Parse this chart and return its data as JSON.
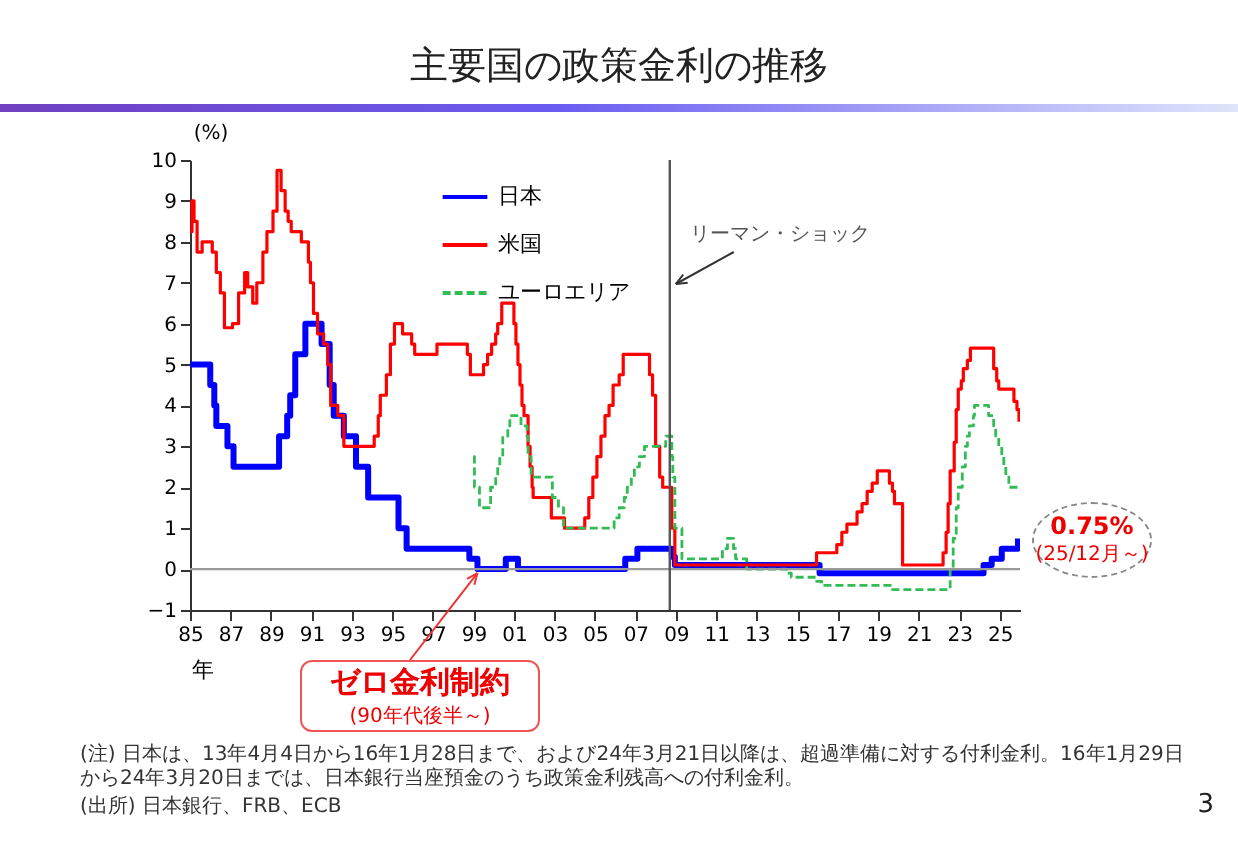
{
  "chart_data": {
    "type": "step",
    "title": "主要国の政策金利の推移",
    "xlabel": "年",
    "ylabel": "(%)",
    "xlim": [
      1985,
      2026
    ],
    "ylim": [
      -1,
      10
    ],
    "xticks": [
      {
        "value": 1985,
        "label": "85"
      },
      {
        "value": 1987,
        "label": "87"
      },
      {
        "value": 1989,
        "label": "89"
      },
      {
        "value": 1991,
        "label": "91"
      },
      {
        "value": 1993,
        "label": "93"
      },
      {
        "value": 1995,
        "label": "95"
      },
      {
        "value": 1997,
        "label": "97"
      },
      {
        "value": 1999,
        "label": "99"
      },
      {
        "value": 2001,
        "label": "01"
      },
      {
        "value": 2003,
        "label": "03"
      },
      {
        "value": 2005,
        "label": "05"
      },
      {
        "value": 2007,
        "label": "07"
      },
      {
        "value": 2009,
        "label": "09"
      },
      {
        "value": 2011,
        "label": "11"
      },
      {
        "value": 2013,
        "label": "13"
      },
      {
        "value": 2015,
        "label": "15"
      },
      {
        "value": 2017,
        "label": "17"
      },
      {
        "value": 2019,
        "label": "19"
      },
      {
        "value": 2021,
        "label": "21"
      },
      {
        "value": 2023,
        "label": "23"
      },
      {
        "value": 2025,
        "label": "25"
      }
    ],
    "yticks": [
      -1,
      0,
      1,
      2,
      3,
      4,
      5,
      6,
      7,
      8,
      9,
      10
    ],
    "legend": "top",
    "grid": false,
    "series": [
      {
        "name": "日本",
        "color": "#0000ff",
        "line_style": "solid",
        "x": [
          1985,
          1986,
          1986.2,
          1986.3,
          1986.85,
          1987.15,
          1989.4,
          1989.8,
          1989.95,
          1990.2,
          1990.7,
          1991.5,
          1991.9,
          1992.1,
          1992.6,
          1993.2,
          1993.8,
          1995.3,
          1995.7,
          1998.8,
          1999.2,
          2000.6,
          2001.2,
          2006.5,
          2007.1,
          2008.8,
          2008.95,
          2016.1,
          2024.2,
          2024.6,
          2025.1,
          2025.9
        ],
        "values": [
          5,
          4.5,
          4,
          3.5,
          3,
          2.5,
          3.25,
          3.75,
          4.25,
          5.25,
          6,
          5.5,
          4.5,
          3.75,
          3.25,
          2.5,
          1.75,
          1,
          0.5,
          0.25,
          0,
          0.25,
          0,
          0.25,
          0.5,
          0.3,
          0.1,
          -0.1,
          0.1,
          0.25,
          0.5,
          0.75
        ]
      },
      {
        "name": "米国",
        "color": "#ff0000",
        "line_style": "solid",
        "x": [
          1985,
          1985.1,
          1985.2,
          1985.35,
          1985.6,
          1986.1,
          1986.3,
          1986.5,
          1986.7,
          1987.1,
          1987.4,
          1987.7,
          1987.85,
          1988.1,
          1988.3,
          1988.6,
          1988.8,
          1989.1,
          1989.3,
          1989.5,
          1989.7,
          1989.85,
          1990,
          1990.5,
          1990.85,
          1990.95,
          1991.1,
          1991.3,
          1991.6,
          1991.8,
          1991.95,
          1992.3,
          1992.6,
          1994.1,
          1994.3,
          1994.4,
          1994.7,
          1994.9,
          1995.1,
          1995.5,
          1995.95,
          1996.1,
          1997.2,
          1998.7,
          1998.85,
          1999.5,
          1999.7,
          1999.9,
          2000.1,
          2000.2,
          2000.4,
          2001,
          2001.1,
          2001.2,
          2001.3,
          2001.4,
          2001.5,
          2001.7,
          2001.8,
          2001.9,
          2001.95,
          2002.85,
          2003.5,
          2004.5,
          2004.7,
          2004.9,
          2005.1,
          2005.3,
          2005.5,
          2005.7,
          2005.9,
          2006.2,
          2006.4,
          2007.7,
          2007.85,
          2008,
          2008.2,
          2008.35,
          2008.8,
          2008.95,
          2015.95,
          2016.95,
          2017.2,
          2017.45,
          2017.95,
          2018.2,
          2018.45,
          2018.7,
          2018.95,
          2019.55,
          2019.7,
          2019.8,
          2020.2,
          2022.2,
          2022.35,
          2022.45,
          2022.55,
          2022.75,
          2022.85,
          2022.95,
          2023.1,
          2023.2,
          2023.4,
          2023.55,
          2024.7,
          2024.85,
          2024.95,
          2025.7,
          2025.85,
          2025.95
        ],
        "values": [
          8.25,
          9,
          8.5,
          7.75,
          8,
          7.75,
          7.25,
          6.75,
          5.9,
          6,
          6.75,
          7.25,
          6.9,
          6.5,
          7,
          7.75,
          8.25,
          8.75,
          9.75,
          9.25,
          8.75,
          8.5,
          8.25,
          8,
          7.5,
          7,
          6.25,
          5.75,
          5.5,
          5,
          4,
          3.75,
          3,
          3.25,
          3.75,
          4.25,
          4.75,
          5.5,
          6,
          5.75,
          5.5,
          5.25,
          5.5,
          5.25,
          4.75,
          5,
          5.25,
          5.5,
          5.75,
          6,
          6.5,
          6,
          5.5,
          5,
          4.5,
          4,
          3.75,
          3,
          2.5,
          2,
          1.75,
          1.25,
          1,
          1.25,
          1.75,
          2.25,
          2.75,
          3.25,
          3.75,
          4,
          4.5,
          4.75,
          5.25,
          4.75,
          4.25,
          3,
          2.25,
          2,
          1,
          0.1,
          0.4,
          0.6,
          0.9,
          1.1,
          1.4,
          1.6,
          1.9,
          2.1,
          2.4,
          2.1,
          1.9,
          1.6,
          0.1,
          0.4,
          0.9,
          1.6,
          2.4,
          3.1,
          3.9,
          4.4,
          4.6,
          4.9,
          5.1,
          5.4,
          4.9,
          4.6,
          4.4,
          4.1,
          3.9,
          3.6
        ]
      },
      {
        "name": "ユーロエリア",
        "color": "#33bb55",
        "line_style": "dashed",
        "x": [
          1999,
          1999.05,
          1999.3,
          1999.85,
          2000.1,
          2000.2,
          2000.3,
          2000.45,
          2000.7,
          2000.8,
          2001.35,
          2001.65,
          2001.7,
          2001.85,
          2002.9,
          2003.2,
          2003.45,
          2005.95,
          2006.2,
          2006.45,
          2006.6,
          2006.8,
          2006.95,
          2007.2,
          2007.45,
          2008.5,
          2008.8,
          2008.85,
          2008.95,
          2009.3,
          2011.3,
          2011.55,
          2011.85,
          2011.95,
          2012.5,
          2014.45,
          2014.7,
          2015.95,
          2016.2,
          2019.7,
          2022.55,
          2022.7,
          2022.85,
          2022.95,
          2023.15,
          2023.3,
          2023.4,
          2023.5,
          2023.7,
          2023.75,
          2024.45,
          2024.7,
          2024.8,
          2024.95,
          2025.1,
          2025.2,
          2025.3,
          2025.45,
          2025.95
        ],
        "values": [
          2.75,
          2,
          1.5,
          2,
          2.25,
          2.5,
          2.75,
          3.25,
          3.5,
          3.75,
          3.5,
          3.25,
          2.75,
          2.25,
          1.75,
          1.5,
          1,
          1.25,
          1.5,
          1.75,
          2,
          2.25,
          2.5,
          2.75,
          3,
          3.25,
          2.75,
          2.25,
          1,
          0.25,
          0.5,
          0.75,
          0.5,
          0.25,
          0,
          -0.1,
          -0.2,
          -0.3,
          -0.4,
          -0.5,
          0,
          0.75,
          1.5,
          2,
          2.5,
          3,
          3.25,
          3.5,
          3.75,
          4,
          3.75,
          3.5,
          3.25,
          3,
          2.75,
          2.5,
          2.25,
          2,
          2
        ]
      }
    ],
    "ref_lines": [
      {
        "axis": "x",
        "value": 2008.7,
        "label": "リーマン・ショック",
        "color": "#555555"
      },
      {
        "axis": "y",
        "value": 0,
        "color": "#999999"
      }
    ],
    "annotations": [
      {
        "text": "ゼロ金利制約\n(90年代後半～)",
        "x": 1999.2,
        "y": 0
      },
      {
        "text": "0.75%\n(25/12月～)",
        "x": 2025.9,
        "y": 0.75
      },
      "(注) 日本は、13年4月4日から16年1月28日まで、および24年3月21日以降は、超過準備に対する付利金利。16年1月29日から24年3月20日までは、日本銀行当座預金のうち政策金利残高への付利金利。",
      "(出所) 日本銀行、FRB、ECB",
      "3"
    ]
  }
}
